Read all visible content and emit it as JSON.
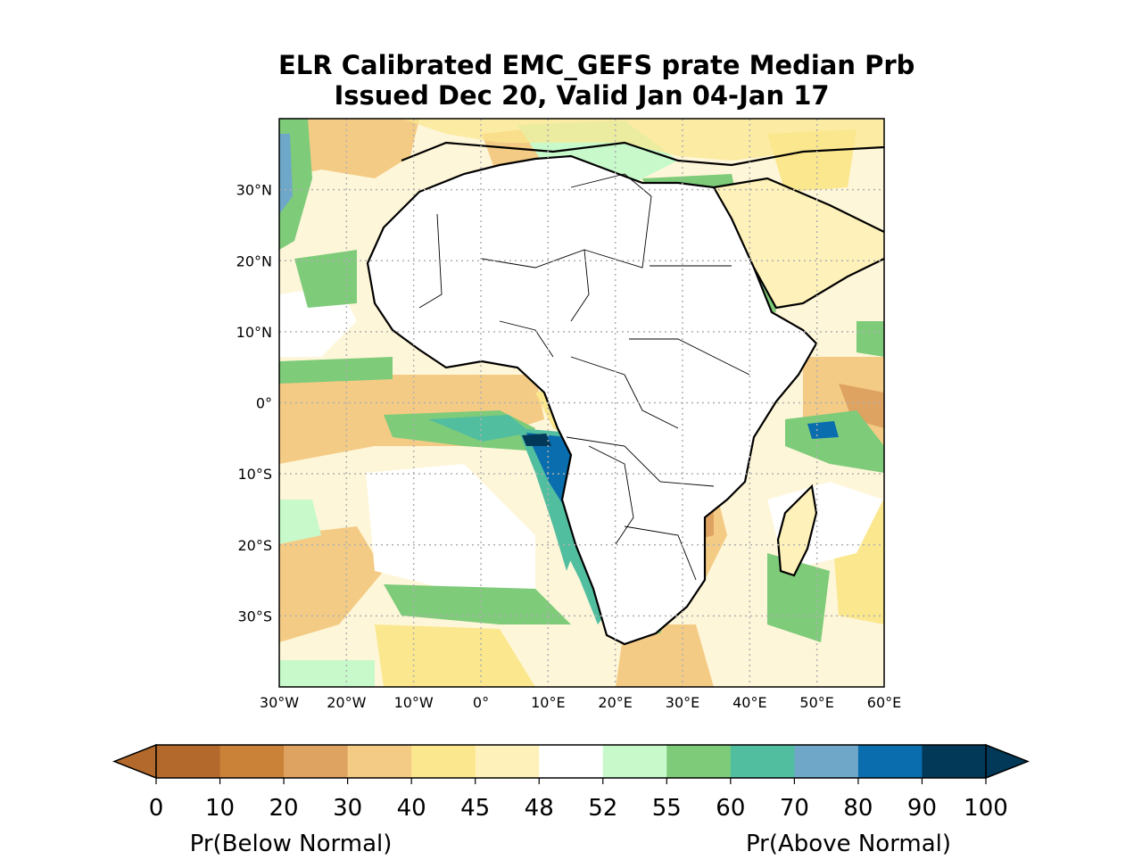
{
  "figure": {
    "title_line1": "ELR Calibrated EMC_GEFS prate Median Prb",
    "title_line2": "Issued Dec 20, Valid Jan 04-Jan 17"
  },
  "map": {
    "lat_labels": [
      "30°N",
      "20°N",
      "10°N",
      "0°",
      "10°S",
      "20°S",
      "30°S"
    ],
    "lon_labels": [
      "30°W",
      "20°W",
      "10°W",
      "0°",
      "10°E",
      "20°E",
      "30°E",
      "40°E",
      "50°E",
      "60°E"
    ],
    "extent": {
      "lon_min": -30,
      "lon_max": 60,
      "lat_min": -40,
      "lat_max": 40
    },
    "gridlines": true
  },
  "colorbar": {
    "ticks": [
      "0",
      "10",
      "20",
      "30",
      "40",
      "45",
      "48",
      "52",
      "55",
      "60",
      "70",
      "80",
      "90",
      "100"
    ],
    "colors": [
      "#b3692b",
      "#c98238",
      "#dfa361",
      "#f4cb85",
      "#fbe78d",
      "#fef1b9",
      "#ffffff",
      "#c7f9cb",
      "#7ecb7a",
      "#52bea0",
      "#6fa7c9",
      "#0a6dad",
      "#023858"
    ],
    "under_color": "#b3692b",
    "over_color": "#023858",
    "below_label": "Pr(Below Normal)",
    "above_label": "Pr(Above Normal)"
  }
}
